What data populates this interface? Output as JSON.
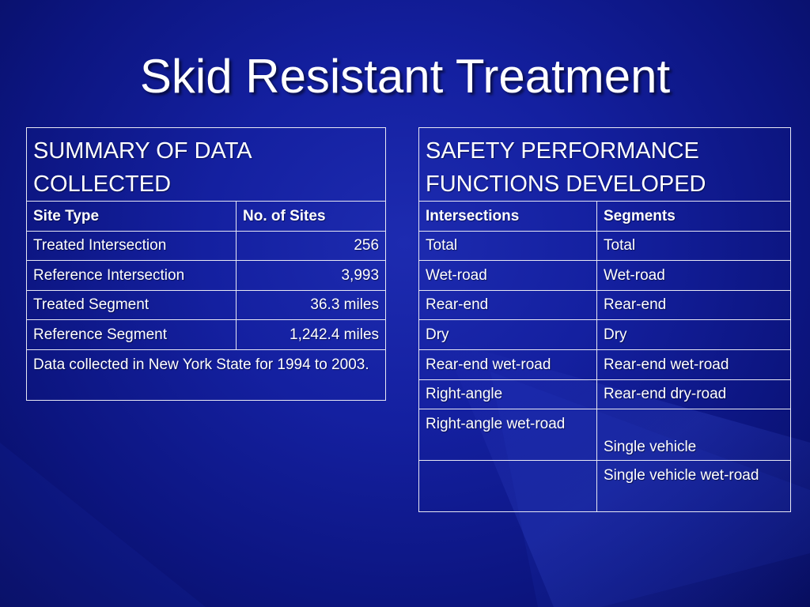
{
  "slide": {
    "title": "Skid Resistant Treatment"
  },
  "summary_table": {
    "heading": "SUMMARY OF DATA COLLECTED",
    "columns": [
      "Site Type",
      "No. of Sites"
    ],
    "rows": [
      [
        "Treated Intersection",
        "256"
      ],
      [
        "Reference Intersection",
        "3,993"
      ],
      [
        "Treated Segment",
        "36.3 miles"
      ],
      [
        "Reference Segment",
        "1,242.4 miles"
      ]
    ],
    "note": "Data collected in New York State for 1994 to 2003."
  },
  "spf_table": {
    "heading": "SAFETY PERFORMANCE FUNCTIONS DEVELOPED",
    "columns": [
      "Intersections",
      "Segments"
    ],
    "rows": [
      [
        "Total",
        "Total"
      ],
      [
        "Wet-road",
        "Wet-road"
      ],
      [
        "Rear-end",
        "Rear-end"
      ],
      [
        "Dry",
        "Dry"
      ],
      [
        "Rear-end wet-road",
        "Rear-end wet-road"
      ],
      [
        "Right-angle",
        "Rear-end dry-road"
      ],
      [
        "Right-angle wet-road",
        "Single vehicle"
      ],
      [
        "",
        "Single vehicle wet-road"
      ]
    ]
  }
}
